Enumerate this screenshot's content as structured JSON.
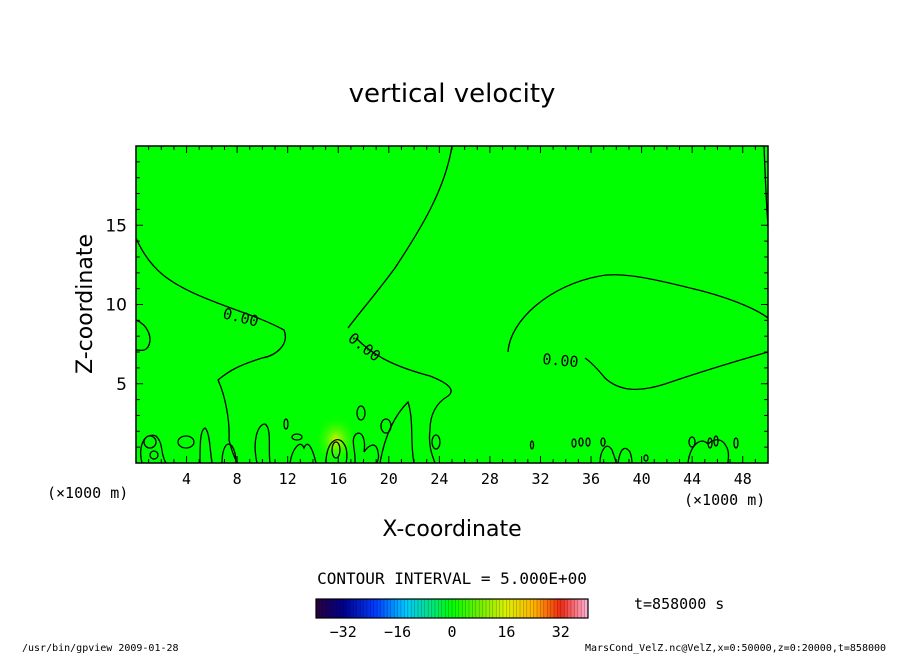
{
  "chart_data": {
    "type": "heatmap",
    "title": "vertical velocity",
    "xlabel": "X-coordinate",
    "ylabel": "Z-coordinate",
    "x_unit_left": "(×1000 m)",
    "x_unit_right": "(×1000 m)",
    "xlim": [
      0,
      50
    ],
    "ylim": [
      0,
      20
    ],
    "x_ticks": [
      "4",
      "8",
      "12",
      "16",
      "20",
      "24",
      "28",
      "32",
      "36",
      "40",
      "44",
      "48"
    ],
    "y_ticks": [
      "5",
      "10",
      "15"
    ],
    "contour_labels": [
      "0.00",
      "0.00",
      "0.00"
    ],
    "contour_interval": "CONTOUR INTERVAL = 5.000E+00",
    "time_label": "t=858000 s",
    "colorbar_ticks": [
      "−32",
      "−16",
      "0",
      "16",
      "32"
    ],
    "colorbar_range": [
      -40,
      40
    ],
    "field_color": "#00ff00",
    "grid": false
  },
  "footer": {
    "left": "/usr/bin/gpview  2009-01-28",
    "right": "MarsCond_VelZ.nc@VelZ,x=0:50000,z=0:20000,t=858000"
  }
}
